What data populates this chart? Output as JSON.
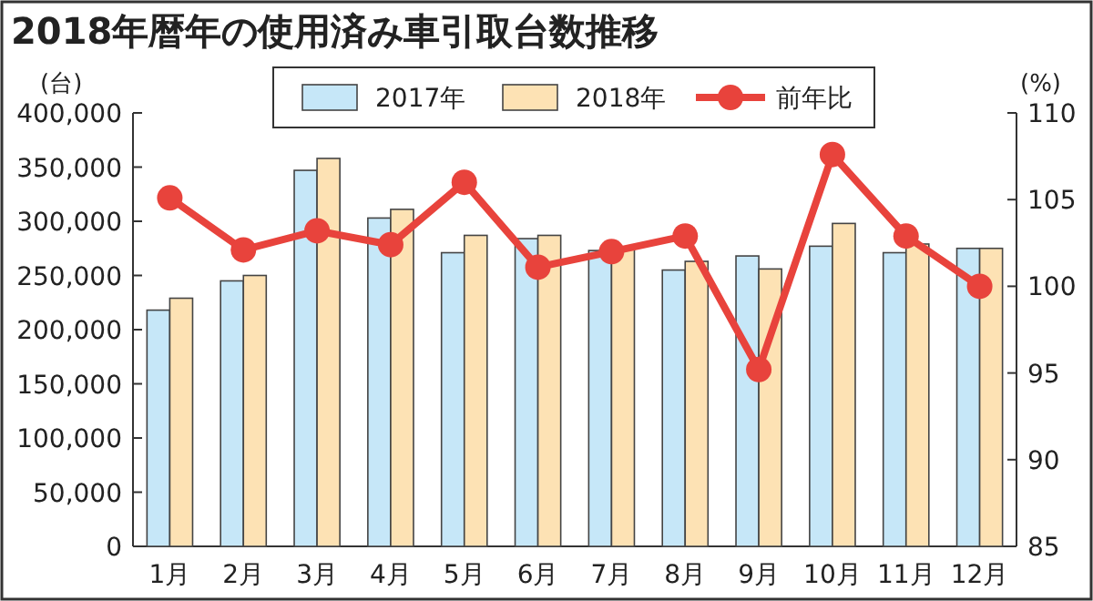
{
  "chart_data": {
    "type": "bar",
    "title": "2018年暦年の使用済み車引取台数推移",
    "ylabel": "(台)",
    "y2label": "(%)",
    "categories": [
      "1月",
      "2月",
      "3月",
      "4月",
      "5月",
      "6月",
      "7月",
      "8月",
      "9月",
      "10月",
      "11月",
      "12月"
    ],
    "series": [
      {
        "name": "2017年",
        "color": "#c6e7f8",
        "values": [
          218000,
          245000,
          347000,
          303000,
          271000,
          284000,
          273000,
          255000,
          268000,
          277000,
          271000,
          275000
        ]
      },
      {
        "name": "2018年",
        "color": "#fde2b4",
        "values": [
          229000,
          250000,
          358000,
          311000,
          287000,
          287000,
          274000,
          263000,
          256000,
          298000,
          279000,
          275000
        ]
      },
      {
        "name": "前年比",
        "type": "line",
        "axis": "y2",
        "color": "#e8433c",
        "marker": "circle",
        "values": [
          105.1,
          102.1,
          103.2,
          102.4,
          106.0,
          101.1,
          102.0,
          102.9,
          95.2,
          107.6,
          102.9,
          100.0
        ]
      }
    ],
    "ylim": [
      0,
      400000
    ],
    "yticks": [
      {
        "value": 0,
        "label": "0"
      },
      {
        "value": 50000,
        "label": "50,000"
      },
      {
        "value": 100000,
        "label": "100,000"
      },
      {
        "value": 150000,
        "label": "150,000"
      },
      {
        "value": 200000,
        "label": "200,000"
      },
      {
        "value": 250000,
        "label": "250,000"
      },
      {
        "value": 300000,
        "label": "300,000"
      },
      {
        "value": 350000,
        "label": "350,000"
      },
      {
        "value": 400000,
        "label": "400,000"
      }
    ],
    "y2lim": [
      85,
      110
    ],
    "y2ticks": [
      85,
      90,
      95,
      100,
      105,
      110
    ],
    "legend": "top",
    "grid": false
  }
}
